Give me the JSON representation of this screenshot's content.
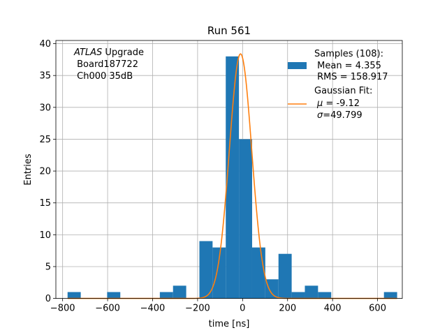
{
  "chart_data": {
    "type": "bar",
    "title": "Run 561",
    "xlabel": "time [ns]",
    "ylabel": "Entries",
    "xlim": [
      -830,
      710
    ],
    "ylim": [
      0,
      40.5
    ],
    "xticks": [
      -800,
      -600,
      -400,
      -200,
      0,
      200,
      400,
      600
    ],
    "xtick_labels": [
      "−800",
      "−600",
      "−400",
      "−200",
      "0",
      "200",
      "400",
      "600"
    ],
    "yticks": [
      0,
      5,
      10,
      15,
      20,
      25,
      30,
      35,
      40
    ],
    "ytick_labels": [
      "0",
      "5",
      "10",
      "15",
      "20",
      "25",
      "30",
      "35",
      "40"
    ],
    "grid": true,
    "bin_width": 58.6,
    "bins_left": [
      -778,
      -719.4,
      -660.8,
      -602.2,
      -543.6,
      -485,
      -426.4,
      -367.8,
      -309.2,
      -250.6,
      -192,
      -133.4,
      -74.8,
      -16.2,
      42.4,
      101,
      159.6,
      218.2,
      276.8,
      335.4,
      394,
      452.6,
      511.2,
      569.8,
      628.4
    ],
    "counts": [
      1,
      0,
      0,
      1,
      0,
      0,
      0,
      1,
      2,
      0,
      9,
      8,
      38,
      25,
      8,
      3,
      7,
      1,
      2,
      1,
      0,
      0,
      0,
      0,
      1
    ],
    "bar_color": "#1f77b4",
    "fit_color": "#ff7f0e",
    "fit": {
      "amplitude": 38.4,
      "mu": -9.12,
      "sigma": 49.799,
      "x_start": -778,
      "x_end": 687
    },
    "annotation_lines": [
      " Upgrade",
      " Board187722",
      " Ch000 35dB"
    ],
    "annotation_italic": "ATLAS",
    "legend_position": "upper right",
    "legend": {
      "samples_lines": [
        "Samples (108):",
        " Mean = 4.355",
        " RMS = 158.917"
      ],
      "fit_title": "Gaussian Fit:",
      "mu_symbol": "μ",
      "mu_text": " = -9.12",
      "sigma_symbol": "σ",
      "sigma_text": "=49.799"
    }
  }
}
